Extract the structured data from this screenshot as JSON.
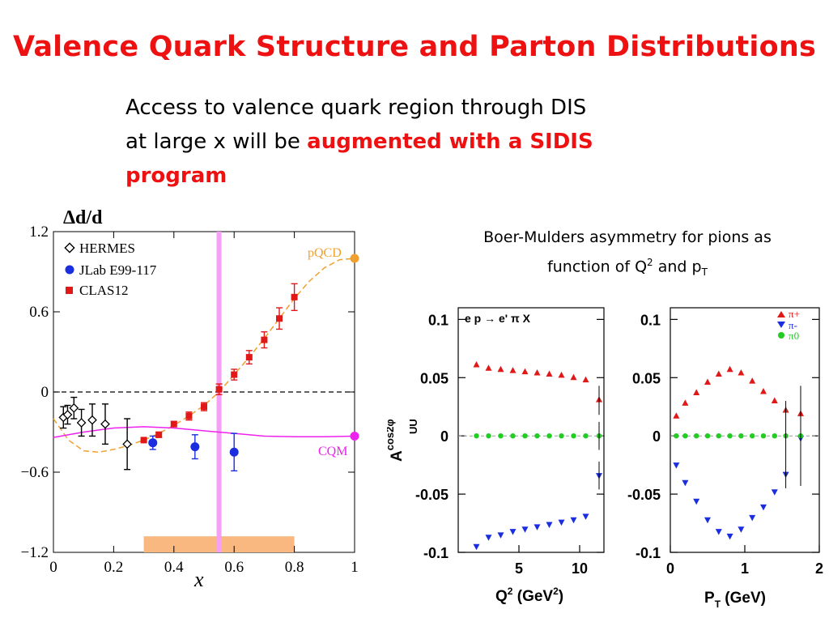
{
  "title": "Valence Quark Structure and Parton Distributions",
  "intro": {
    "line1": "Access to valence quark region through DIS",
    "line2_prefix": "at large x will be ",
    "line2_highlight": "augmented with a SIDIS",
    "line3_highlight": "program"
  },
  "bm_caption": {
    "line1": "Boer-Mulders asymmetry for pions as",
    "line2_prefix": "function of Q",
    "line2_sup": "2",
    "line2_mid": " and p",
    "line2_sub": "T"
  },
  "chart_data": [
    {
      "type": "scatter",
      "ylabel": "Δd/d",
      "xlabel": "x",
      "xlim": [
        0,
        1
      ],
      "ylim": [
        -1.2,
        1.2
      ],
      "xticks": [
        "0",
        "0.2",
        "0.4",
        "0.6",
        "0.8",
        "1"
      ],
      "yticks": [
        "1.2",
        "0.6",
        "0",
        "−0.6",
        "−1.2"
      ],
      "legend": [
        "HERMES",
        "JLab E99-117",
        "CLAS12"
      ],
      "curve_labels": {
        "pqcd": "pQCD",
        "cqm": "CQM"
      },
      "colors": {
        "hermes": "#000000",
        "jlab": "#1a2ee0",
        "clas12": "#e01818",
        "pqcd": "#f0a030",
        "cqm": "#ee22ee",
        "band": "#f8b880",
        "vline": "#f4a0f4"
      },
      "series": [
        {
          "name": "HERMES",
          "x": [
            0.033,
            0.047,
            0.068,
            0.093,
            0.129,
            0.172,
            0.245
          ],
          "y": [
            -0.19,
            -0.17,
            -0.12,
            -0.23,
            -0.21,
            -0.24,
            -0.39
          ],
          "err": [
            0.08,
            0.07,
            0.08,
            0.1,
            0.12,
            0.15,
            0.19
          ]
        },
        {
          "name": "JLab E99-117",
          "x": [
            0.33,
            0.47,
            0.6
          ],
          "y": [
            -0.38,
            -0.41,
            -0.45
          ],
          "err": [
            0.05,
            0.09,
            0.14
          ]
        },
        {
          "name": "CLAS12",
          "x": [
            0.3,
            0.35,
            0.4,
            0.45,
            0.5,
            0.55,
            0.6,
            0.65,
            0.7,
            0.75,
            0.8
          ],
          "y": [
            -0.36,
            -0.32,
            -0.24,
            -0.18,
            -0.11,
            0.02,
            0.13,
            0.26,
            0.39,
            0.55,
            0.71
          ],
          "err": [
            0.01,
            0.02,
            0.02,
            0.03,
            0.03,
            0.04,
            0.04,
            0.05,
            0.06,
            0.08,
            0.1
          ]
        }
      ],
      "pqcd_curve": {
        "x": [
          0.0,
          0.05,
          0.1,
          0.15,
          0.2,
          0.25,
          0.3,
          0.35,
          0.4,
          0.45,
          0.5,
          0.55,
          0.6,
          0.65,
          0.7,
          0.75,
          0.8,
          0.85,
          0.9,
          0.95,
          1.0
        ],
        "y": [
          -0.2,
          -0.36,
          -0.44,
          -0.45,
          -0.43,
          -0.4,
          -0.36,
          -0.31,
          -0.25,
          -0.18,
          -0.1,
          0.0,
          0.13,
          0.26,
          0.4,
          0.55,
          0.7,
          0.83,
          0.93,
          0.99,
          1.0
        ]
      },
      "cqm_curve": {
        "x": [
          0.0,
          0.1,
          0.2,
          0.3,
          0.4,
          0.5,
          0.6,
          0.7,
          0.8,
          0.9,
          1.0
        ],
        "y": [
          -0.34,
          -0.3,
          -0.27,
          -0.26,
          -0.27,
          -0.29,
          -0.31,
          -0.33,
          -0.335,
          -0.335,
          -0.33
        ]
      },
      "band": {
        "x": [
          0.3,
          0.8
        ],
        "y": [
          -1.2,
          -1.08
        ]
      },
      "vline_x": 0.55
    },
    {
      "type": "scatter",
      "panel_label": "e p → e' π  X",
      "ylabel": "A",
      "ylabel_sup": "cos2φ",
      "ylabel_sub": "UU",
      "xlabel_prefix": "Q",
      "xlabel_sup": "2",
      "xlabel_mid": " (GeV",
      "xlabel_sup2": "2",
      "xlabel_end": ")",
      "xlim": [
        0,
        12
      ],
      "ylim": [
        -0.1,
        0.11
      ],
      "xticks": [
        "5",
        "10"
      ],
      "yticks": [
        "0.1",
        "0.05",
        "0",
        "-0.05",
        "-0.1"
      ],
      "series": [
        {
          "name": "π+",
          "x": [
            1.5,
            2.5,
            3.5,
            4.5,
            5.5,
            6.5,
            7.5,
            8.5,
            9.5,
            10.5,
            11.6
          ],
          "y": [
            0.061,
            0.058,
            0.057,
            0.056,
            0.055,
            0.054,
            0.053,
            0.052,
            0.05,
            0.048,
            0.031
          ]
        },
        {
          "name": "π-",
          "x": [
            1.5,
            2.5,
            3.5,
            4.5,
            5.5,
            6.5,
            7.5,
            8.5,
            9.5,
            10.5,
            11.6
          ],
          "y": [
            -0.095,
            -0.087,
            -0.085,
            -0.082,
            -0.08,
            -0.078,
            -0.076,
            -0.074,
            -0.072,
            -0.069,
            -0.034
          ]
        },
        {
          "name": "π0",
          "x": [
            1.5,
            2.5,
            3.5,
            4.5,
            5.5,
            6.5,
            7.5,
            8.5,
            9.5,
            10.5,
            11.6
          ],
          "y": [
            0,
            0,
            0,
            0,
            0,
            0,
            0,
            0,
            0,
            0,
            0
          ]
        }
      ]
    },
    {
      "type": "scatter",
      "legend": [
        "π+",
        "π-",
        "π0"
      ],
      "xlabel_prefix": "P",
      "xlabel_sub": "T",
      "xlabel_end": " (GeV)",
      "xlim": [
        0,
        2
      ],
      "ylim": [
        -0.1,
        0.11
      ],
      "xticks": [
        "0",
        "1",
        "2"
      ],
      "yticks": [
        "0.1",
        "0.05",
        "0",
        "-0.05",
        "-0.1"
      ],
      "series": [
        {
          "name": "π+",
          "x": [
            0.08,
            0.2,
            0.35,
            0.5,
            0.65,
            0.8,
            0.95,
            1.1,
            1.25,
            1.4,
            1.55,
            1.75
          ],
          "y": [
            0.017,
            0.028,
            0.037,
            0.046,
            0.053,
            0.057,
            0.054,
            0.047,
            0.038,
            0.03,
            0.022,
            0.019
          ]
        },
        {
          "name": "π-",
          "x": [
            0.08,
            0.2,
            0.35,
            0.5,
            0.65,
            0.8,
            0.95,
            1.1,
            1.25,
            1.4,
            1.55,
            1.75
          ],
          "y": [
            -0.025,
            -0.04,
            -0.056,
            -0.072,
            -0.082,
            -0.086,
            -0.08,
            -0.07,
            -0.061,
            -0.048,
            -0.033,
            -0.002
          ]
        },
        {
          "name": "π0",
          "x": [
            0.08,
            0.2,
            0.35,
            0.5,
            0.65,
            0.8,
            0.95,
            1.1,
            1.25,
            1.4,
            1.55,
            1.75
          ],
          "y": [
            0,
            0,
            0,
            0,
            0,
            0,
            0,
            0,
            0,
            0,
            0,
            0
          ]
        }
      ]
    }
  ]
}
